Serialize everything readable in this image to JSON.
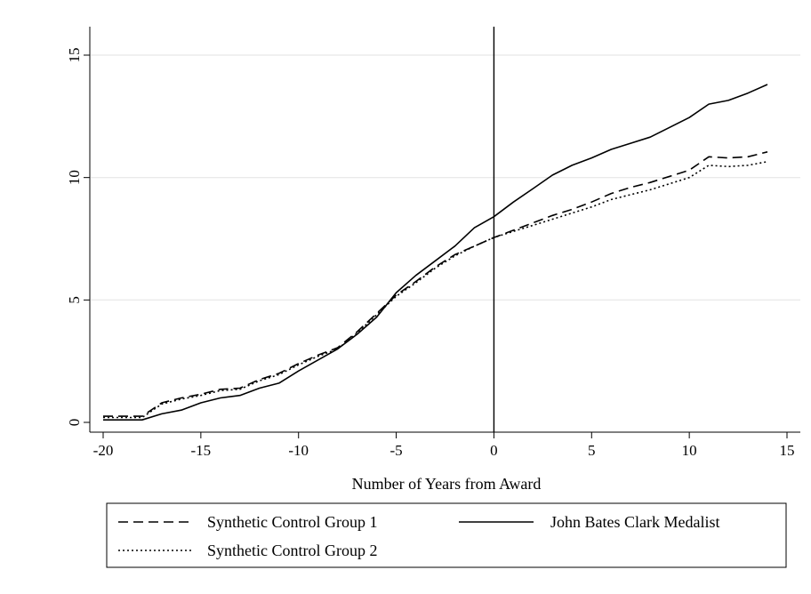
{
  "chart_data": {
    "type": "line",
    "title": "",
    "xlabel": "Number of Years from Award",
    "ylabel": "",
    "xlim": [
      -21,
      16
    ],
    "ylim": [
      -0.5,
      16.2
    ],
    "xticks": [
      -20,
      -15,
      -10,
      -5,
      0,
      5,
      10,
      15
    ],
    "yticks": [
      0,
      5,
      10,
      15
    ],
    "grid": "horizontal",
    "vertical_line_x": 0,
    "legend_placement": "bottom",
    "x": [
      -20,
      -19,
      -18,
      -17,
      -16,
      -15,
      -14,
      -13,
      -12,
      -11,
      -10,
      -9,
      -8,
      -7,
      -6,
      -5,
      -4,
      -3,
      -2,
      -1,
      0,
      1,
      2,
      3,
      4,
      5,
      6,
      7,
      8,
      9,
      10,
      11,
      12,
      13,
      14
    ],
    "series": [
      {
        "name": "John Bates Clark Medalist",
        "style": "solid",
        "color": "#000000",
        "values": [
          0.1,
          0.1,
          0.1,
          0.35,
          0.5,
          0.8,
          1.0,
          1.1,
          1.4,
          1.6,
          2.1,
          2.55,
          3.0,
          3.6,
          4.3,
          5.3,
          6.0,
          6.6,
          7.2,
          7.95,
          8.4,
          9.0,
          9.55,
          10.1,
          10.5,
          10.8,
          11.15,
          11.4,
          11.65,
          12.05,
          12.45,
          13.0,
          13.15,
          13.45,
          13.8
        ]
      },
      {
        "name": "Synthetic Control Group 1",
        "style": "dashed",
        "color": "#000000",
        "values": [
          0.25,
          0.25,
          0.25,
          0.8,
          1.0,
          1.15,
          1.35,
          1.4,
          1.75,
          2.0,
          2.4,
          2.75,
          3.05,
          3.7,
          4.45,
          5.2,
          5.75,
          6.35,
          6.85,
          7.2,
          7.55,
          7.85,
          8.15,
          8.45,
          8.7,
          9.0,
          9.35,
          9.6,
          9.8,
          10.05,
          10.3,
          10.85,
          10.8,
          10.85,
          11.05
        ]
      },
      {
        "name": "Synthetic Control Group 2",
        "style": "dotted",
        "color": "#000000",
        "values": [
          0.2,
          0.2,
          0.2,
          0.75,
          0.95,
          1.1,
          1.3,
          1.35,
          1.7,
          1.95,
          2.35,
          2.7,
          3.0,
          3.65,
          4.4,
          5.15,
          5.7,
          6.3,
          6.8,
          7.2,
          7.55,
          7.8,
          8.05,
          8.3,
          8.55,
          8.8,
          9.1,
          9.3,
          9.5,
          9.75,
          10.0,
          10.5,
          10.45,
          10.5,
          10.65
        ]
      }
    ],
    "legend": {
      "row1_left": "Synthetic Control Group 1",
      "row1_right": "John Bates Clark Medalist",
      "row2_left": "Synthetic Control Group 2"
    }
  }
}
